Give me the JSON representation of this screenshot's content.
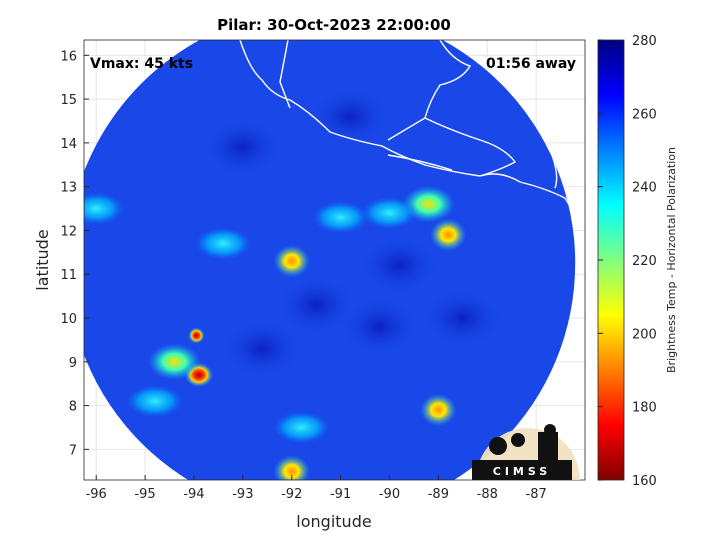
{
  "chart_data": {
    "type": "heatmap",
    "title": "Pilar: 30-Oct-2023 22:00:00",
    "xlabel": "longitude",
    "ylabel": "latitude",
    "xlim": [
      -96.25,
      -86.0
    ],
    "ylim": [
      6.3,
      16.35
    ],
    "xticks": [
      -96,
      -95,
      -94,
      -93,
      -92,
      -91,
      -90,
      -89,
      -88,
      -87
    ],
    "yticks": [
      7,
      8,
      9,
      10,
      11,
      12,
      13,
      14,
      15,
      16
    ],
    "grid": true,
    "annotations": {
      "vmax": "Vmax: 45 kts",
      "time_offset": "01:56 away"
    },
    "colorbar": {
      "label": "Brightness Temp - Horizontal Polarization",
      "range": [
        160,
        280
      ],
      "ticks": [
        160,
        180,
        200,
        220,
        240,
        260,
        280
      ],
      "colormap": "jet"
    },
    "features": [
      {
        "lon": -92.0,
        "lat": 11.3,
        "value": 228
      },
      {
        "lon": -88.8,
        "lat": 11.9,
        "value": 222
      },
      {
        "lon": -89.2,
        "lat": 12.6,
        "value": 230
      },
      {
        "lon": -90.0,
        "lat": 12.4,
        "value": 238
      },
      {
        "lon": -91.0,
        "lat": 12.3,
        "value": 240
      },
      {
        "lon": -93.4,
        "lat": 11.7,
        "value": 236
      },
      {
        "lon": -93.9,
        "lat": 8.7,
        "value": 172
      },
      {
        "lon": -93.95,
        "lat": 9.6,
        "value": 186
      },
      {
        "lon": -94.4,
        "lat": 9.0,
        "value": 230
      },
      {
        "lon": -91.8,
        "lat": 7.5,
        "value": 236
      },
      {
        "lon": -89.0,
        "lat": 7.9,
        "value": 218
      },
      {
        "lon": -92.0,
        "lat": 6.5,
        "value": 225
      },
      {
        "lon": -94.8,
        "lat": 8.1,
        "value": 238
      },
      {
        "lon": -96.0,
        "lat": 12.5,
        "value": 238
      }
    ],
    "background_value": 262,
    "swath": {
      "center_lon": -91.4,
      "center_lat": 11.25,
      "radius_deg": 5.2
    },
    "logo": "CIMSS"
  }
}
